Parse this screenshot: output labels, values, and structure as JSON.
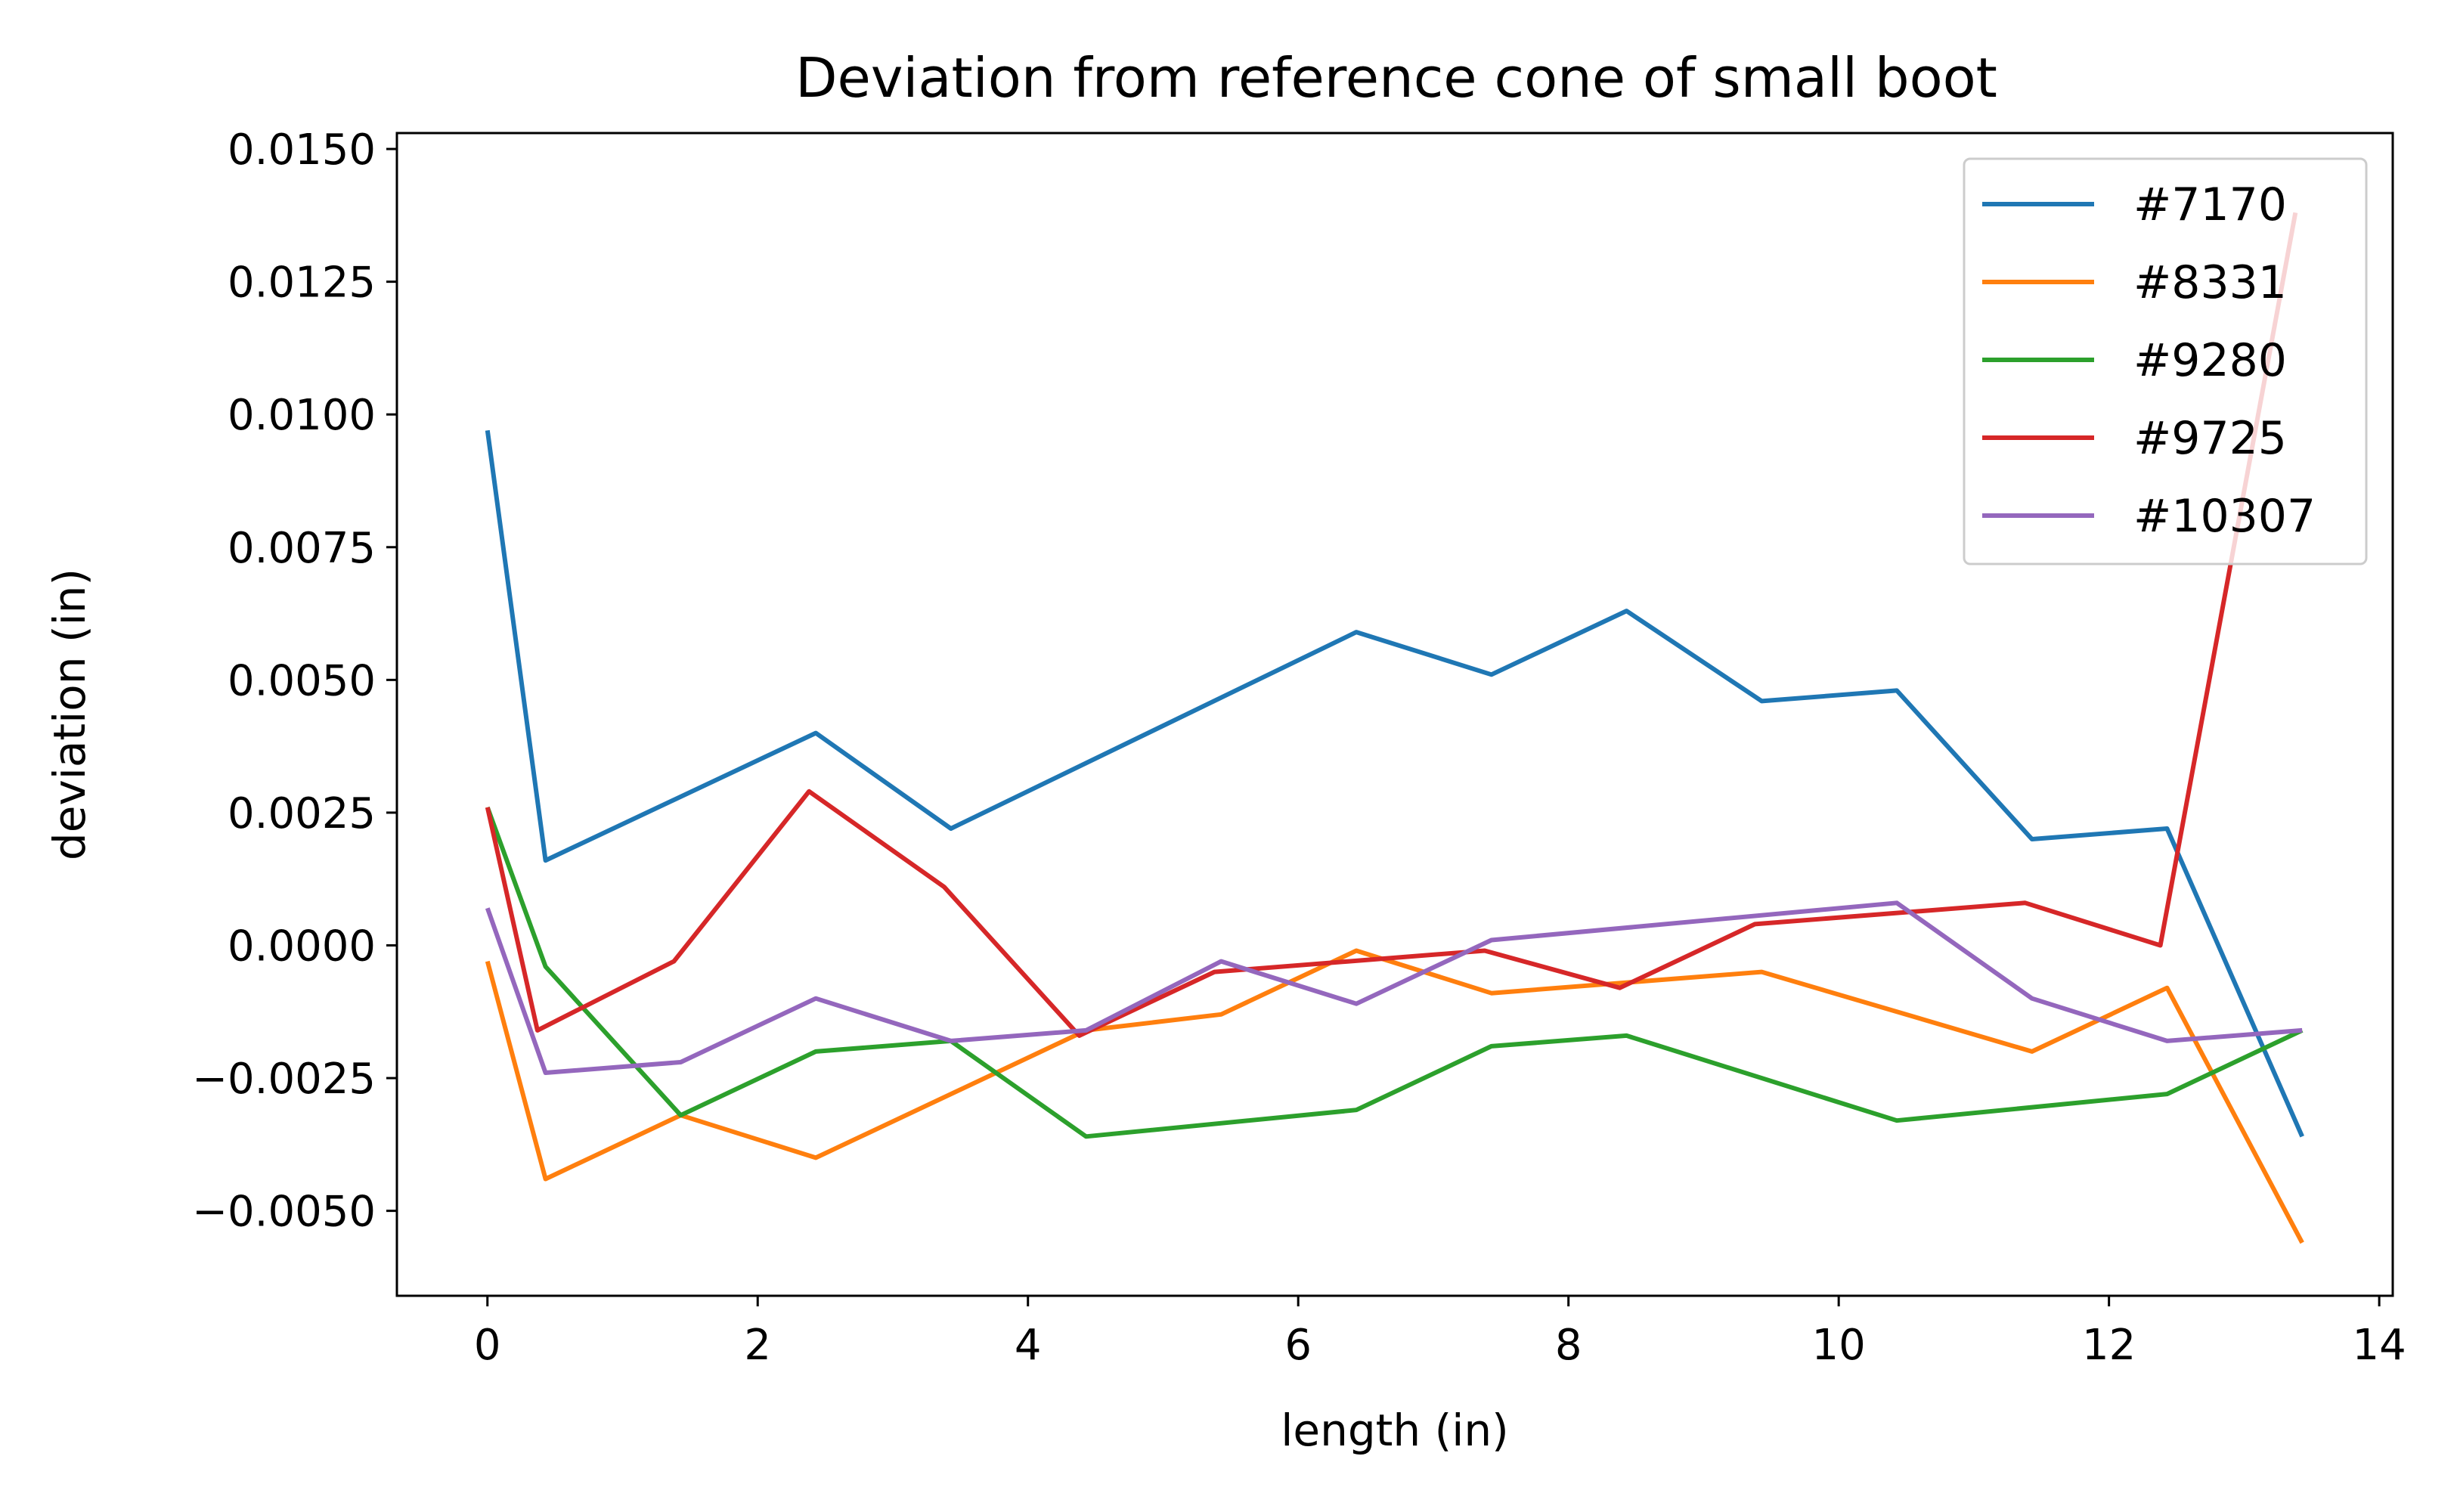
{
  "chart_data": {
    "type": "line",
    "title": "Deviation from reference cone of small boot",
    "xlabel": "length (in)",
    "ylabel": "deviation (in)",
    "xlim": [
      -0.67,
      14.1
    ],
    "ylim": [
      -0.0066,
      0.0153
    ],
    "xticks": [
      0,
      2,
      4,
      6,
      8,
      10,
      12,
      14
    ],
    "xtick_labels": [
      "0",
      "2",
      "4",
      "6",
      "8",
      "10",
      "12",
      "14"
    ],
    "yticks": [
      -0.005,
      -0.0025,
      0.0,
      0.0025,
      0.005,
      0.0075,
      0.01,
      0.0125,
      0.015
    ],
    "ytick_labels": [
      "−0.0050",
      "−0.0025",
      "0.0000",
      "0.0025",
      "0.0050",
      "0.0075",
      "0.0100",
      "0.0125",
      "0.0150"
    ],
    "grid": false,
    "legend_position": "top-right",
    "series": [
      {
        "name": "#7170",
        "color": "#1f77b4",
        "x": [
          0.0,
          0.43,
          2.43,
          3.43,
          6.43,
          7.43,
          8.43,
          9.43,
          10.43,
          11.43,
          12.43,
          13.43
        ],
        "y": [
          0.0097,
          0.0016,
          0.004,
          0.0022,
          0.0059,
          0.0051,
          0.0063,
          0.0046,
          0.0048,
          0.002,
          0.0022,
          -0.0036
        ]
      },
      {
        "name": "#8331",
        "color": "#ff7f0e",
        "x": [
          0.0,
          0.43,
          1.43,
          2.43,
          4.43,
          5.43,
          6.43,
          7.43,
          9.43,
          11.43,
          12.43,
          13.43
        ],
        "y": [
          -0.0003,
          -0.0044,
          -0.0032,
          -0.004,
          -0.0016,
          -0.0013,
          -0.0001,
          -0.0009,
          -0.0005,
          -0.002,
          -0.0008,
          -0.0056
        ]
      },
      {
        "name": "#9280",
        "color": "#2ca02c",
        "x": [
          0.0,
          0.43,
          1.43,
          2.43,
          3.43,
          4.43,
          6.43,
          7.43,
          8.43,
          10.43,
          12.43,
          13.43
        ],
        "y": [
          0.0026,
          -0.0004,
          -0.0032,
          -0.002,
          -0.0018,
          -0.0036,
          -0.0031,
          -0.0019,
          -0.0017,
          -0.0033,
          -0.0028,
          -0.0016
        ]
      },
      {
        "name": "#9725",
        "color": "#d62728",
        "x": [
          0.0,
          0.37,
          1.38,
          2.38,
          3.38,
          4.38,
          5.38,
          7.38,
          8.38,
          9.38,
          11.38,
          12.38,
          13.38
        ],
        "y": [
          0.0026,
          -0.0016,
          -0.0003,
          0.0029,
          0.0011,
          -0.0017,
          -0.0005,
          -0.0001,
          -0.0008,
          0.0004,
          0.0008,
          0.0,
          0.0138
        ]
      },
      {
        "name": "#10307",
        "color": "#9467bd",
        "x": [
          0.0,
          0.43,
          1.43,
          2.43,
          3.43,
          4.43,
          5.43,
          6.43,
          7.43,
          10.43,
          11.43,
          12.43,
          13.43
        ],
        "y": [
          0.0007,
          -0.0024,
          -0.0022,
          -0.001,
          -0.0018,
          -0.0016,
          -0.0003,
          -0.0011,
          0.0001,
          0.0008,
          -0.001,
          -0.0018,
          -0.0016
        ]
      }
    ]
  }
}
